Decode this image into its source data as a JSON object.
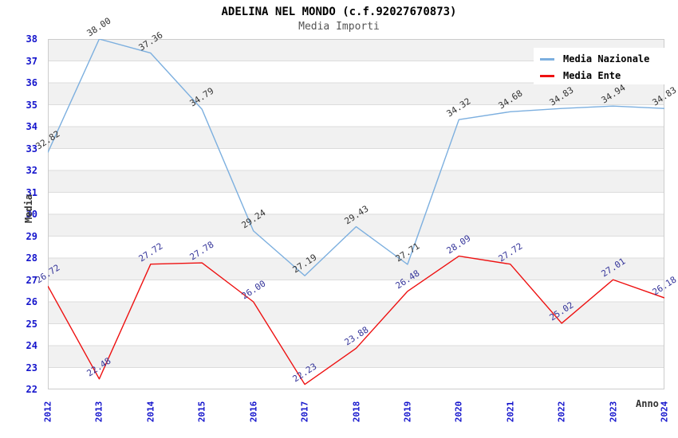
{
  "header": {
    "title": "ADELINA NEL MONDO (c.f.92027670873)",
    "subtitle": "Media Importi"
  },
  "colors": {
    "serie_nazionale_line": "#7cafdf",
    "serie_ente_line": "#ee1111",
    "tick_label_blue": "#1414cc",
    "point_label_nazionale": "#333333",
    "point_label_ente": "#333399",
    "stripe_gray": "#f1f1f1",
    "grid_line": "#dcdcdc",
    "plot_border": "#cccccc"
  },
  "chart_data": {
    "type": "line",
    "title": "ADELINA NEL MONDO (c.f.92027670873)",
    "subtitle": "Media Importi",
    "xlabel": "Anno",
    "ylabel": "Media",
    "x": [
      "2012",
      "2013",
      "2014",
      "2015",
      "2016",
      "2017",
      "2018",
      "2019",
      "2020",
      "2021",
      "2022",
      "2023",
      "2024"
    ],
    "y_ticks": [
      22,
      23,
      24,
      25,
      26,
      27,
      28,
      29,
      30,
      31,
      32,
      33,
      34,
      35,
      36,
      37,
      38
    ],
    "ylim": [
      22,
      38
    ],
    "grid": "striped-horizontal",
    "legend_position": "top-right",
    "point_label_decimals": 2,
    "series": [
      {
        "name": "Media Nazionale",
        "color": "#7cafdf",
        "label_color": "#333333",
        "values": [
          32.82,
          38.0,
          37.36,
          34.79,
          29.24,
          27.19,
          29.43,
          27.71,
          34.32,
          34.68,
          34.83,
          34.94,
          34.83
        ]
      },
      {
        "name": "Media Ente",
        "color": "#ee1111",
        "label_color": "#333399",
        "values": [
          26.72,
          22.48,
          27.72,
          27.78,
          26.0,
          22.23,
          23.88,
          26.48,
          28.09,
          27.72,
          25.02,
          27.01,
          26.18
        ]
      }
    ]
  }
}
